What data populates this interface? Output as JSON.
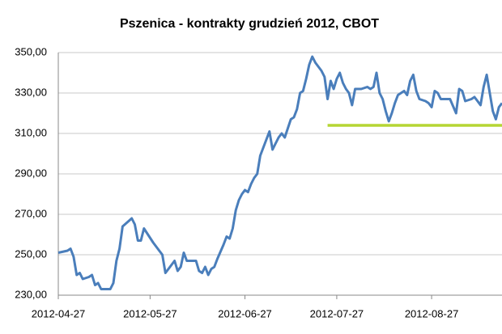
{
  "chart_data": {
    "type": "line",
    "title": "Pszenica - kontrakty grudzień 2012, CBOT",
    "x": [
      "2012-04-27",
      "2012-04-30",
      "2012-05-01",
      "2012-05-02",
      "2012-05-03",
      "2012-05-04",
      "2012-05-05",
      "2012-05-07",
      "2012-05-08",
      "2012-05-09",
      "2012-05-10",
      "2012-05-11",
      "2012-05-14",
      "2012-05-15",
      "2012-05-16",
      "2012-05-17",
      "2012-05-18",
      "2012-05-21",
      "2012-05-22",
      "2012-05-23",
      "2012-05-24",
      "2012-05-25",
      "2012-05-28",
      "2012-05-30",
      "2012-05-31",
      "2012-06-01",
      "2012-06-02",
      "2012-06-04",
      "2012-06-05",
      "2012-06-06",
      "2012-06-07",
      "2012-06-08",
      "2012-06-11",
      "2012-06-12",
      "2012-06-13",
      "2012-06-14",
      "2012-06-15",
      "2012-06-16",
      "2012-06-17",
      "2012-06-18",
      "2012-06-20",
      "2012-06-21",
      "2012-06-22",
      "2012-06-23",
      "2012-06-24",
      "2012-06-25",
      "2012-06-26",
      "2012-06-27",
      "2012-06-28",
      "2012-06-29",
      "2012-06-30",
      "2012-07-01",
      "2012-07-02",
      "2012-07-04",
      "2012-07-05",
      "2012-07-06",
      "2012-07-07",
      "2012-07-08",
      "2012-07-09",
      "2012-07-10",
      "2012-07-12",
      "2012-07-13",
      "2012-07-14",
      "2012-07-15",
      "2012-07-16",
      "2012-07-17",
      "2012-07-18",
      "2012-07-19",
      "2012-07-20",
      "2012-07-22",
      "2012-07-23",
      "2012-07-24",
      "2012-07-25",
      "2012-07-26",
      "2012-07-27",
      "2012-07-28",
      "2012-07-29",
      "2012-07-30",
      "2012-07-31",
      "2012-08-01",
      "2012-08-02",
      "2012-08-04",
      "2012-08-06",
      "2012-08-07",
      "2012-08-08",
      "2012-08-09",
      "2012-08-10",
      "2012-08-11",
      "2012-08-12",
      "2012-08-13",
      "2012-08-14",
      "2012-08-15",
      "2012-08-16",
      "2012-08-17",
      "2012-08-18",
      "2012-08-19",
      "2012-08-20",
      "2012-08-21",
      "2012-08-22",
      "2012-08-23",
      "2012-08-25",
      "2012-08-26",
      "2012-08-27",
      "2012-08-28",
      "2012-08-29",
      "2012-08-30",
      "2012-09-01",
      "2012-09-02",
      "2012-09-04",
      "2012-09-05",
      "2012-09-06",
      "2012-09-07",
      "2012-09-09",
      "2012-09-10",
      "2012-09-11",
      "2012-09-12",
      "2012-09-13",
      "2012-09-14",
      "2012-09-15",
      "2012-09-16",
      "2012-09-17",
      "2012-09-18",
      "2012-09-19"
    ],
    "values": [
      251,
      252,
      253,
      249,
      240,
      241,
      238,
      239,
      240,
      235,
      236,
      233,
      233,
      236,
      247,
      253,
      264,
      268,
      265,
      257,
      257,
      263,
      256,
      252,
      250,
      241,
      243,
      247,
      242,
      244,
      251,
      247,
      247,
      242,
      241,
      244,
      240,
      243,
      244,
      248,
      255,
      259,
      258,
      263,
      272,
      277,
      280,
      282,
      281,
      285,
      288,
      290,
      299,
      307,
      311,
      302,
      305,
      308,
      310,
      308,
      317,
      318,
      322,
      330,
      331,
      337,
      344,
      348,
      345,
      341,
      338,
      327,
      336,
      332,
      337,
      340,
      335,
      332,
      330,
      324,
      332,
      332,
      333,
      332,
      333,
      340,
      330,
      327,
      321,
      316,
      320,
      325,
      329,
      330,
      331,
      329,
      336,
      339,
      331,
      327,
      326,
      325,
      323,
      331,
      330,
      327,
      327,
      327,
      320,
      332,
      331,
      326,
      327,
      328,
      326,
      324,
      333,
      339,
      330,
      321,
      317,
      323,
      325
    ],
    "color": "#4a7ebb",
    "reference_line": {
      "x": [
        "2012-07-24",
        "2012-09-19"
      ],
      "value": 314,
      "color": "#b5d534"
    },
    "xlim": [
      "2012-04-27",
      "2012-09-19"
    ],
    "xticks": [
      "2012-04-27",
      "2012-05-27",
      "2012-06-27",
      "2012-07-27",
      "2012-08-27"
    ],
    "ylim": [
      230,
      350
    ],
    "yticks": [
      {
        "value": 230,
        "label": "230,00"
      },
      {
        "value": 250,
        "label": "250,00"
      },
      {
        "value": 270,
        "label": "270,00"
      },
      {
        "value": 290,
        "label": "290,00"
      },
      {
        "value": 310,
        "label": "310,00"
      },
      {
        "value": 330,
        "label": "330,00"
      },
      {
        "value": 350,
        "label": "350,00"
      }
    ],
    "grid": true
  }
}
